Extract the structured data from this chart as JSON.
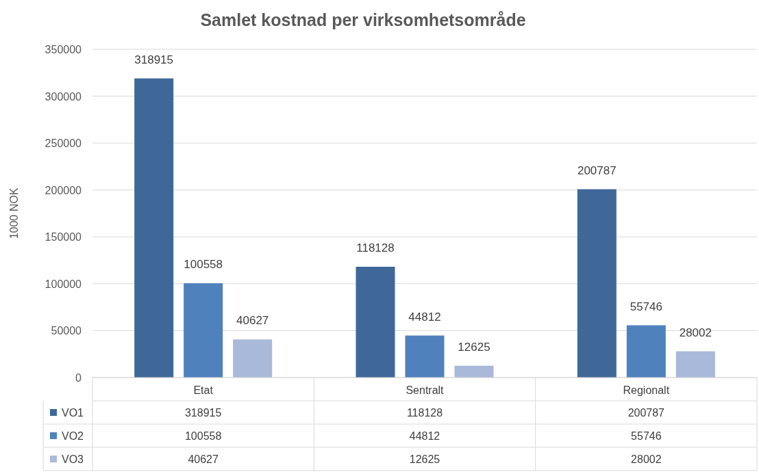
{
  "chart_data": {
    "type": "bar",
    "title": "Samlet kostnad per virksomhetsområde",
    "ylabel": "1000 NOK",
    "categories": [
      "Etat",
      "Sentralt",
      "Regionalt"
    ],
    "series": [
      {
        "name": "VO1",
        "color": "#3f6899",
        "values": [
          318915,
          118128,
          200787
        ],
        "value_labels": [
          "318915",
          "118128",
          "200787"
        ]
      },
      {
        "name": "VO2",
        "color": "#4f81bd",
        "values": [
          100558,
          44812,
          55746
        ],
        "value_labels": [
          "100558",
          "44812",
          "55746"
        ]
      },
      {
        "name": "VO3",
        "color": "#a9b9d9",
        "values": [
          40627,
          12625,
          28002
        ],
        "value_labels": [
          "40627",
          "12625",
          "28002"
        ]
      }
    ],
    "ylim": [
      0,
      350000
    ],
    "yticks": [
      0,
      50000,
      100000,
      150000,
      200000,
      250000,
      300000,
      350000
    ],
    "grid": "y",
    "data_labels": true,
    "legend": "bottom",
    "annotations": [
      "318915",
      "118128",
      "200787",
      "100558",
      "44812",
      "55746",
      "40627",
      "12625",
      "28002"
    ]
  }
}
